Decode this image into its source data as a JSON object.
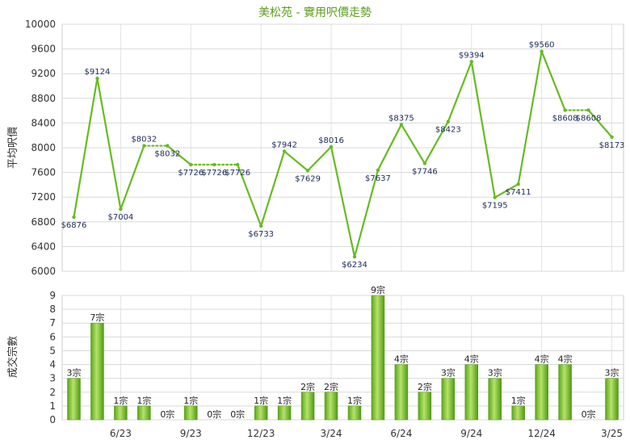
{
  "chart_data": [
    {
      "type": "line",
      "title": "美松苑 - 實用呎價走勢",
      "ylabel": "平均呎價",
      "ylim": [
        6000,
        10000
      ],
      "yticks": [
        6000,
        6400,
        6800,
        7200,
        7600,
        8000,
        8400,
        8800,
        9200,
        9600,
        10000
      ],
      "x_tick_labels": [
        "6/23",
        "9/23",
        "12/23",
        "3/24",
        "6/24",
        "9/24",
        "12/24",
        "3/25"
      ],
      "series_color": "#66bb22",
      "points": [
        {
          "value": 6876,
          "label": "$6876"
        },
        {
          "value": 9124,
          "label": "$9124"
        },
        {
          "value": 7004,
          "label": "$7004"
        },
        {
          "value": 8032,
          "label": "$8032"
        },
        {
          "value": 8032,
          "label": "$8032",
          "interpolated": true
        },
        {
          "value": 7726,
          "label": "$7726"
        },
        {
          "value": 7726,
          "label": "$7726",
          "interpolated": true
        },
        {
          "value": 7726,
          "label": "$7726",
          "interpolated": true
        },
        {
          "value": 6733,
          "label": "$6733"
        },
        {
          "value": 7942,
          "label": "$7942"
        },
        {
          "value": 7629,
          "label": "$7629"
        },
        {
          "value": 8016,
          "label": "$8016"
        },
        {
          "value": 6234,
          "label": "$6234"
        },
        {
          "value": 7637,
          "label": "$7637"
        },
        {
          "value": 8375,
          "label": "$8375"
        },
        {
          "value": 7746,
          "label": "$7746"
        },
        {
          "value": 8423,
          "label": "$8423"
        },
        {
          "value": 9394,
          "label": "$9394"
        },
        {
          "value": 7195,
          "label": "$7195"
        },
        {
          "value": 7411,
          "label": "$7411"
        },
        {
          "value": 9560,
          "label": "$9560"
        },
        {
          "value": 8608,
          "label": "$8608"
        },
        {
          "value": 8608,
          "label": "$8608",
          "interpolated": true
        },
        {
          "value": 8173,
          "label": "$8173"
        }
      ]
    },
    {
      "type": "bar",
      "ylabel": "成交宗數",
      "ylim": [
        0,
        9
      ],
      "yticks": [
        0,
        1,
        2,
        3,
        4,
        5,
        6,
        7,
        8,
        9
      ],
      "x_tick_labels": [
        "6/23",
        "9/23",
        "12/23",
        "3/24",
        "6/24",
        "9/24",
        "12/24",
        "3/25"
      ],
      "bar_color": "#66bb22",
      "values": [
        3,
        7,
        1,
        1,
        0,
        1,
        0,
        0,
        1,
        1,
        2,
        2,
        1,
        9,
        4,
        2,
        3,
        4,
        3,
        1,
        4,
        4,
        0,
        3
      ],
      "labels": [
        "3宗",
        "7宗",
        "1宗",
        "1宗",
        "0宗",
        "1宗",
        "0宗",
        "0宗",
        "1宗",
        "1宗",
        "2宗",
        "2宗",
        "1宗",
        "9宗",
        "4宗",
        "2宗",
        "3宗",
        "4宗",
        "3宗",
        "1宗",
        "4宗",
        "4宗",
        "0宗",
        "3宗"
      ]
    }
  ]
}
